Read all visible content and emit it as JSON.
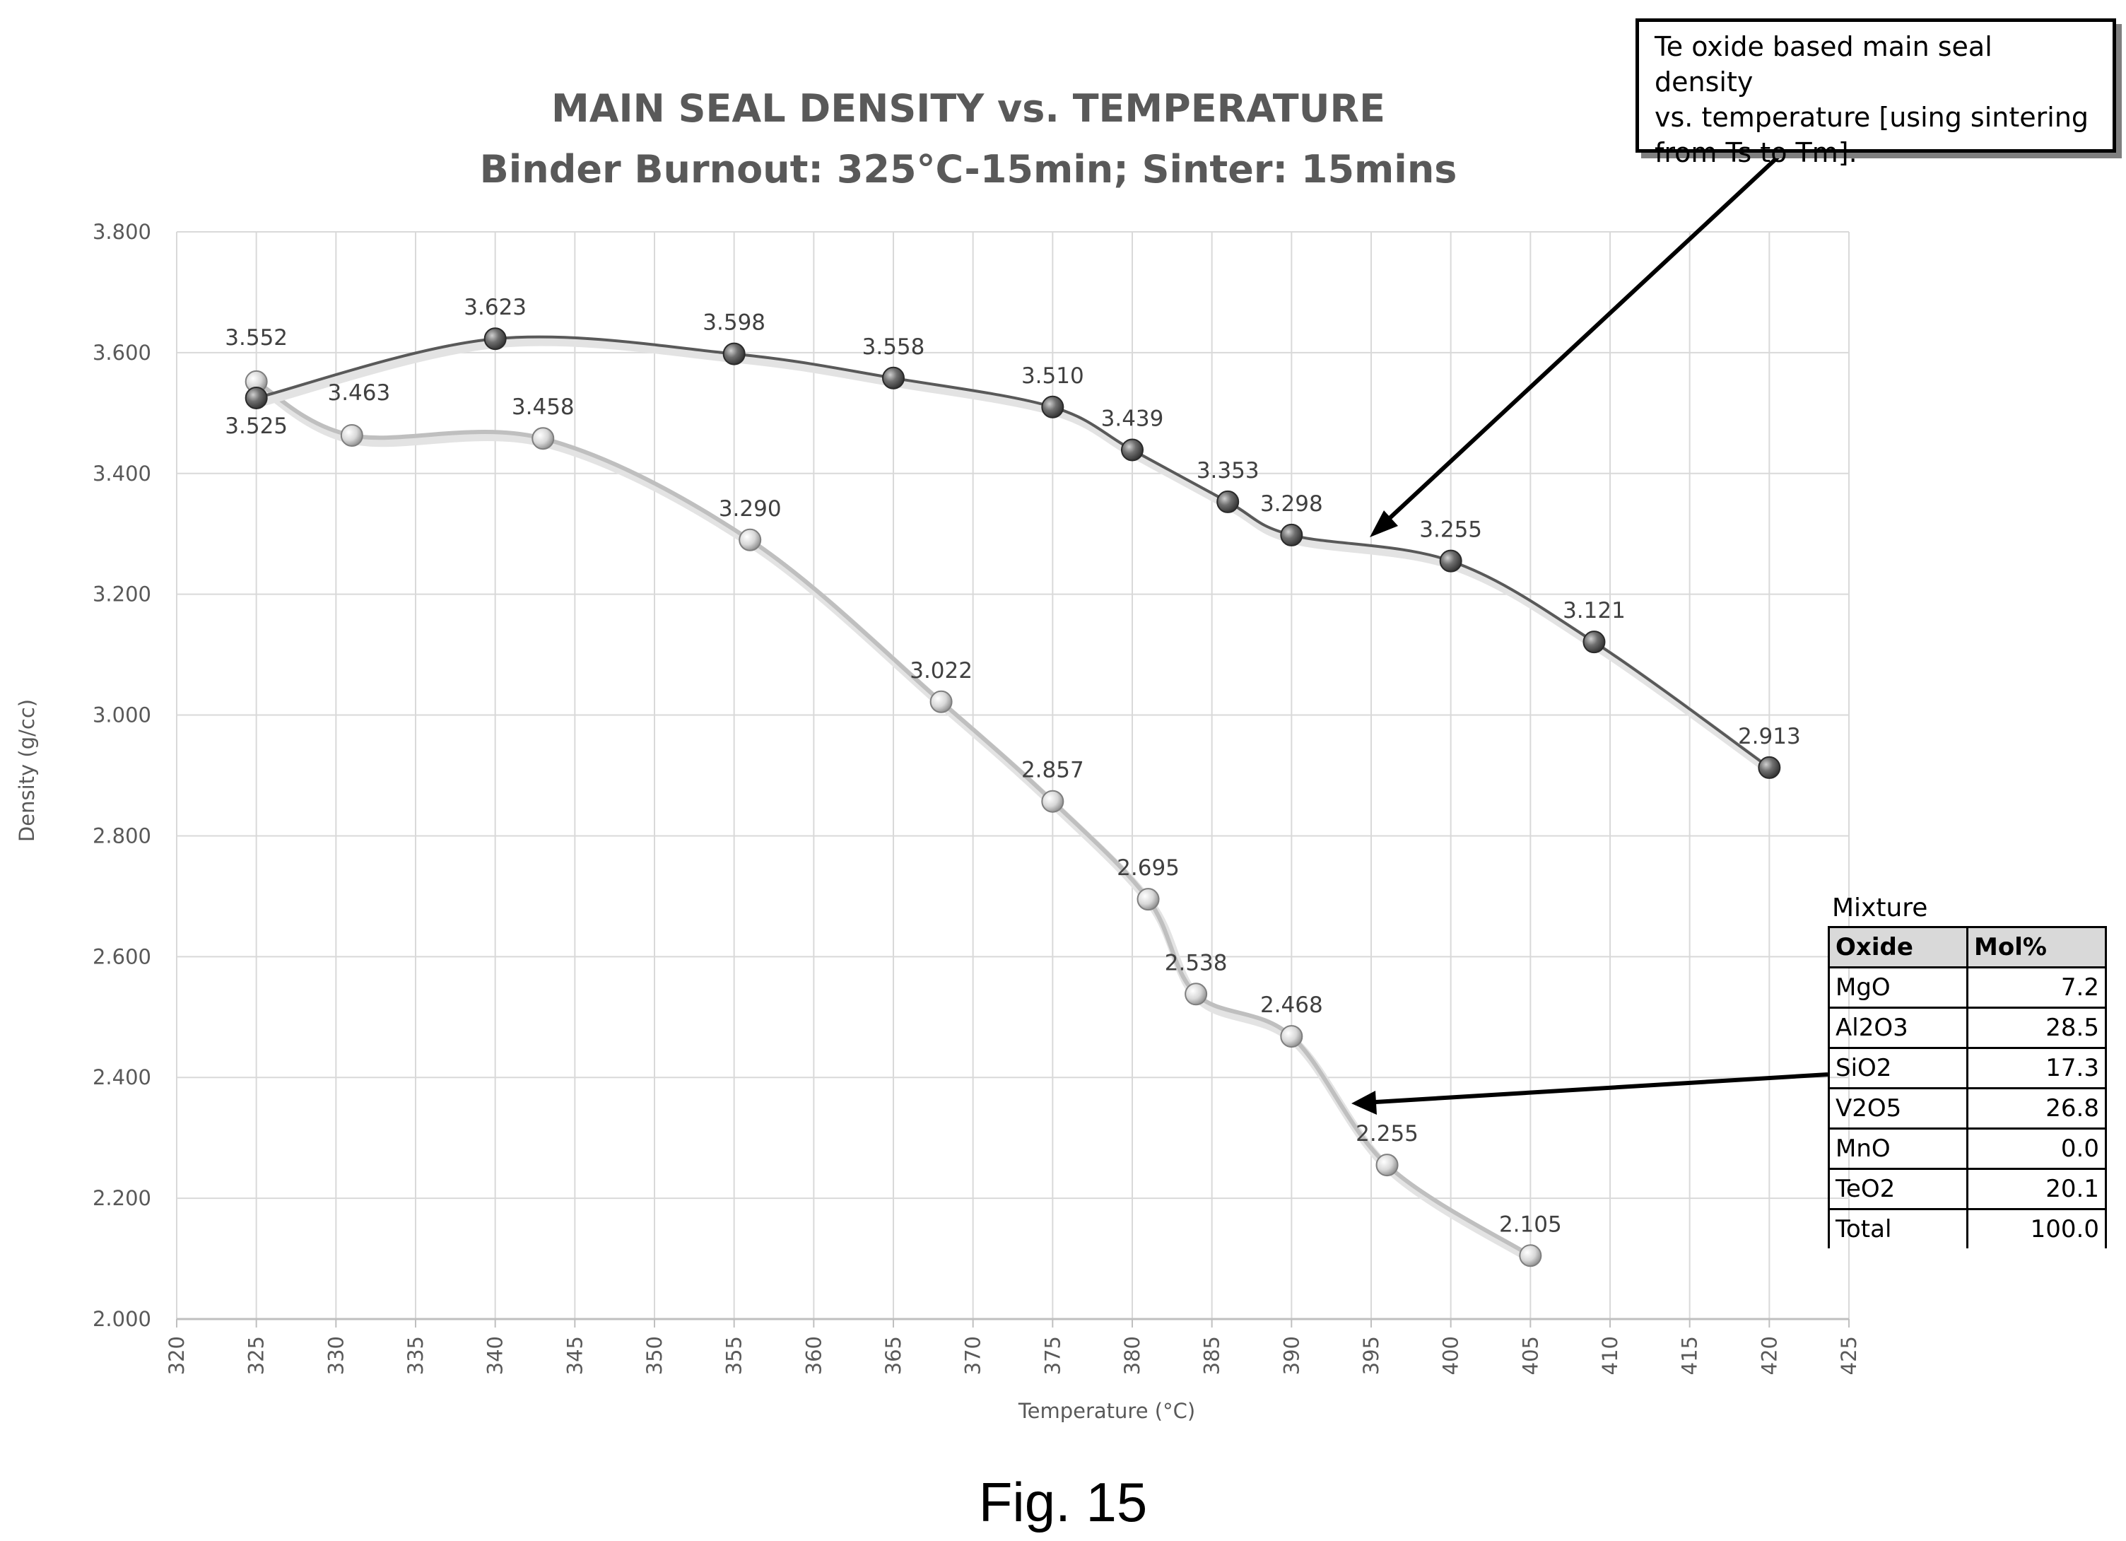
{
  "chart_data": {
    "type": "line",
    "title": "MAIN SEAL DENSITY vs. TEMPERATURE",
    "subtitle": "Binder Burnout: 325°C-15min; Sinter: 15mins",
    "xlabel": "Temperature (°C)",
    "ylabel": "Density (g/cc)",
    "xlim": [
      320,
      425
    ],
    "ylim": [
      2.0,
      3.8
    ],
    "x_ticks": [
      320,
      325,
      330,
      335,
      340,
      345,
      350,
      355,
      360,
      365,
      370,
      375,
      380,
      385,
      390,
      395,
      400,
      405,
      410,
      415,
      420,
      425
    ],
    "y_ticks": [
      "2.000",
      "2.200",
      "2.400",
      "2.600",
      "2.800",
      "3.000",
      "3.200",
      "3.400",
      "3.600",
      "3.800"
    ],
    "grid": true,
    "series": [
      {
        "color": "#595959",
        "points": [
          {
            "x": 325,
            "y": 3.525,
            "label": "3.525"
          },
          {
            "x": 340,
            "y": 3.623,
            "label": "3.623"
          },
          {
            "x": 355,
            "y": 3.598,
            "label": "3.598"
          },
          {
            "x": 365,
            "y": 3.558,
            "label": "3.558"
          },
          {
            "x": 375,
            "y": 3.51,
            "label": "3.510"
          },
          {
            "x": 380,
            "y": 3.439,
            "label": "3.439"
          },
          {
            "x": 386,
            "y": 3.353,
            "label": "3.353"
          },
          {
            "x": 390,
            "y": 3.298,
            "label": "3.298"
          },
          {
            "x": 400,
            "y": 3.255,
            "label": "3.255"
          },
          {
            "x": 409,
            "y": 3.121,
            "label": "3.121"
          },
          {
            "x": 420,
            "y": 2.913,
            "label": "2.913"
          }
        ]
      },
      {
        "color": "#bfbfbf",
        "points": [
          {
            "x": 325,
            "y": 3.552,
            "label": "3.552"
          },
          {
            "x": 331,
            "y": 3.463,
            "label": "3.463"
          },
          {
            "x": 343,
            "y": 3.458,
            "label": "3.458"
          },
          {
            "x": 356,
            "y": 3.29,
            "label": "3.290"
          },
          {
            "x": 368,
            "y": 3.022,
            "label": "3.022"
          },
          {
            "x": 375,
            "y": 2.857,
            "label": "2.857"
          },
          {
            "x": 381,
            "y": 2.695,
            "label": "2.695"
          },
          {
            "x": 384,
            "y": 2.538,
            "label": "2.538"
          },
          {
            "x": 390,
            "y": 2.468,
            "label": "2.468"
          },
          {
            "x": 396,
            "y": 2.255,
            "label": "2.255"
          },
          {
            "x": 405,
            "y": 2.105,
            "label": "2.105"
          }
        ]
      }
    ]
  },
  "callout": {
    "line1": "Te oxide based main seal density",
    "line2": "vs. temperature [using sintering",
    "line3": "from Ts to Tm]."
  },
  "mixture": {
    "caption": "Mixture",
    "headers": [
      "Oxide",
      "Mol%"
    ],
    "rows": [
      [
        "MgO",
        "7.2"
      ],
      [
        "Al2O3",
        "28.5"
      ],
      [
        "SiO2",
        "17.3"
      ],
      [
        "V2O5",
        "26.8"
      ],
      [
        "MnO",
        "0.0"
      ],
      [
        "TeO2",
        "20.1"
      ],
      [
        "Total",
        "100.0"
      ]
    ]
  },
  "figure_label": "Fig. 15"
}
